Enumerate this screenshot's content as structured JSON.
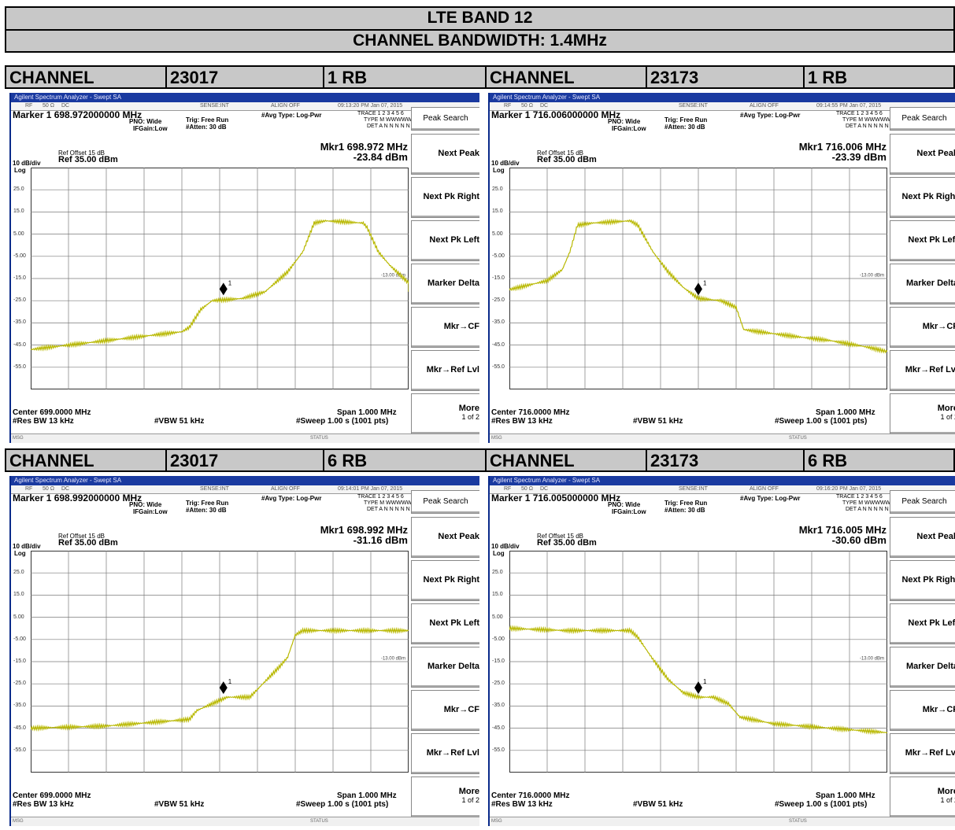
{
  "title": "LTE BAND 12",
  "subtitle": "CHANNEL BANDWIDTH: 1.4MHz",
  "colors": {
    "trace": "#b8b800",
    "grid": "#7a7a7a",
    "header_bg": "#c8c8c8",
    "titlebar": "#1a3aa0"
  },
  "common": {
    "app_title": "Agilent Spectrum Analyzer - Swept SA",
    "rf": "RF",
    "ohm": "50 Ω",
    "dc": "DC",
    "sense": "SENSE:INT",
    "align": "ALIGN OFF",
    "avg": "#Avg Type: Log-Pwr",
    "trace_line": "TRACE 1 2 3 4 5 6",
    "type_line": "TYPE M WWWWW",
    "det_line": "DET A N N N N N",
    "pno": "PNO: Wide",
    "ifgain": "IFGain:Low",
    "trig": "Trig: Free Run",
    "atten": "#Atten: 30 dB",
    "ref_offset": "Ref Offset 15 dB",
    "scale": "10 dB/div",
    "log": "Log",
    "ref": "Ref 35.00 dBm",
    "limit": "-13.00 dBm",
    "res_bw": "#Res BW 13 kHz",
    "vbw": "#VBW 51 kHz",
    "span": "Span 1.000 MHz",
    "sweep": "#Sweep  1.00 s (1001 pts)",
    "msg": "MSG",
    "status": "STATUS",
    "y_ticks": [
      "25.0",
      "15.0",
      "5.00",
      "-5.00",
      "-15.0",
      "-25.0",
      "-35.0",
      "-45.0",
      "-55.0"
    ],
    "buttons": [
      "Peak Search",
      "Next Peak",
      "Next Pk Right",
      "Next Pk Left",
      "Marker Delta",
      "Mkr→CF",
      "Mkr→Ref Lvl",
      "More"
    ],
    "more_sub": "1 of 2",
    "channel_word": "CHANNEL"
  },
  "panels": [
    {
      "channel": "23017",
      "rb": "1 RB",
      "time": "09:13:20 PM Jan 07, 2015",
      "marker": "Marker 1 698.972000000 MHz",
      "mkr_freq": "Mkr1 698.972 MHz",
      "mkr_level": "-23.84 dBm",
      "center": "Center 699.0000 MHz",
      "trace": [
        [
          0,
          -47
        ],
        [
          10,
          -45
        ],
        [
          20,
          -43
        ],
        [
          30,
          -41
        ],
        [
          40,
          -39
        ],
        [
          42,
          -37
        ],
        [
          45,
          -29
        ],
        [
          48,
          -25
        ],
        [
          56,
          -24
        ],
        [
          62,
          -21
        ],
        [
          68,
          -12
        ],
        [
          72,
          -3
        ],
        [
          75,
          10
        ],
        [
          78,
          11
        ],
        [
          88,
          10
        ],
        [
          89,
          8
        ],
        [
          92,
          -3
        ],
        [
          95,
          -9
        ],
        [
          100,
          -17
        ],
        [
          100,
          -21
        ]
      ],
      "marker_x": 51,
      "marker_y": -24
    },
    {
      "channel": "23173",
      "rb": "1 RB",
      "time": "09:14:55 PM Jan 07, 2015",
      "marker": "Marker 1 716.006000000 MHz",
      "mkr_freq": "Mkr1 716.006 MHz",
      "mkr_level": "-23.39 dBm",
      "center": "Center 716.0000 MHz",
      "trace": [
        [
          0,
          -20
        ],
        [
          5,
          -18
        ],
        [
          10,
          -16
        ],
        [
          14,
          -11
        ],
        [
          16,
          -3
        ],
        [
          18,
          9
        ],
        [
          22,
          10
        ],
        [
          32,
          11
        ],
        [
          34,
          9
        ],
        [
          38,
          -3
        ],
        [
          42,
          -12
        ],
        [
          46,
          -19
        ],
        [
          50,
          -24
        ],
        [
          56,
          -25
        ],
        [
          60,
          -28
        ],
        [
          62,
          -38
        ],
        [
          66,
          -39
        ],
        [
          75,
          -41
        ],
        [
          85,
          -43
        ],
        [
          95,
          -46
        ],
        [
          100,
          -48
        ]
      ],
      "marker_x": 50,
      "marker_y": -24
    },
    {
      "channel": "23017",
      "rb": "6 RB",
      "time": "09:14:01 PM Jan 07, 2015",
      "marker": "Marker 1 698.992000000 MHz",
      "mkr_freq": "Mkr1 698.992 MHz",
      "mkr_level": "-31.16 dBm",
      "center": "Center 699.0000 MHz",
      "trace": [
        [
          0,
          -45
        ],
        [
          20,
          -44
        ],
        [
          35,
          -42
        ],
        [
          42,
          -41
        ],
        [
          44,
          -37
        ],
        [
          48,
          -34
        ],
        [
          52,
          -31
        ],
        [
          58,
          -31
        ],
        [
          62,
          -24
        ],
        [
          66,
          -17
        ],
        [
          68,
          -13
        ],
        [
          70,
          -3
        ],
        [
          72,
          -1
        ],
        [
          85,
          -1
        ],
        [
          100,
          -1
        ]
      ],
      "marker_x": 51,
      "marker_y": -31
    },
    {
      "channel": "23173",
      "rb": "6 RB",
      "time": "09:16:20 PM Jan 07, 2015",
      "marker": "Marker 1 716.005000000 MHz",
      "mkr_freq": "Mkr1 716.005 MHz",
      "mkr_level": "-30.60 dBm",
      "center": "Center 716.0000 MHz",
      "trace": [
        [
          0,
          0
        ],
        [
          15,
          -1
        ],
        [
          32,
          -1
        ],
        [
          34,
          -4
        ],
        [
          38,
          -14
        ],
        [
          42,
          -23
        ],
        [
          46,
          -29
        ],
        [
          50,
          -31
        ],
        [
          54,
          -31
        ],
        [
          58,
          -34
        ],
        [
          61,
          -40
        ],
        [
          70,
          -43
        ],
        [
          85,
          -45
        ],
        [
          100,
          -47
        ]
      ],
      "marker_x": 50,
      "marker_y": -31
    }
  ]
}
